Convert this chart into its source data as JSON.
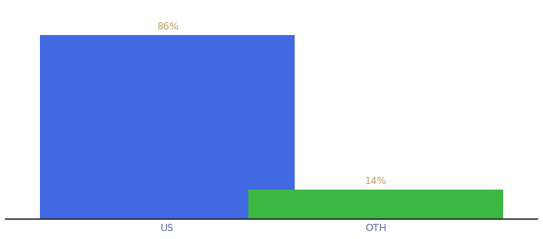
{
  "categories": [
    "US",
    "OTH"
  ],
  "values": [
    86,
    14
  ],
  "bar_colors": [
    "#4169e1",
    "#3cb843"
  ],
  "label_color": "#c0a060",
  "label_fontsize": 9,
  "tick_fontsize": 9,
  "tick_color": "#6666aa",
  "background_color": "#ffffff",
  "ylim": [
    0,
    100
  ],
  "bar_width": 0.55,
  "x_positions": [
    0.3,
    0.75
  ]
}
